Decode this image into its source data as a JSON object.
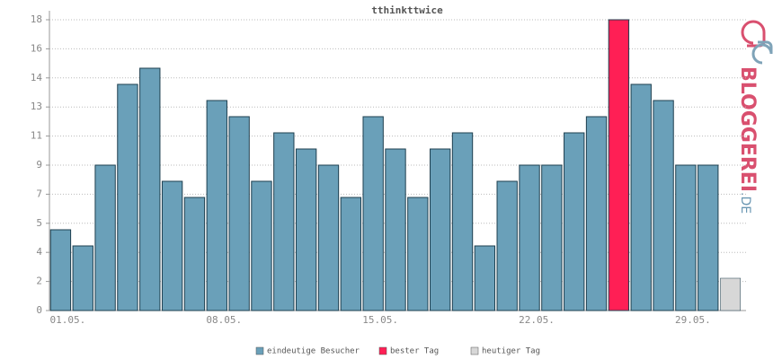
{
  "chart_data": {
    "type": "bar",
    "title": "tthinkttwice",
    "categories": [
      "01.05.",
      null,
      null,
      null,
      null,
      null,
      null,
      "08.05.",
      null,
      null,
      null,
      null,
      null,
      null,
      "15.05.",
      null,
      null,
      null,
      null,
      null,
      null,
      "22.05.",
      null,
      null,
      null,
      null,
      null,
      null,
      "29.05.",
      null,
      null
    ],
    "series": [
      {
        "name": "eindeutige Besucher",
        "color": "#6aa0b9",
        "values": [
          5,
          4,
          9,
          14,
          15,
          8,
          7,
          13,
          12,
          8,
          11,
          10,
          9,
          7,
          12,
          10,
          7,
          10,
          11,
          4,
          8,
          9,
          9,
          11,
          12,
          null,
          14,
          13,
          9,
          9,
          null
        ]
      },
      {
        "name": "bester Tag",
        "color": "#ff1f55",
        "values": [
          null,
          null,
          null,
          null,
          null,
          null,
          null,
          null,
          null,
          null,
          null,
          null,
          null,
          null,
          null,
          null,
          null,
          null,
          null,
          null,
          null,
          null,
          null,
          null,
          null,
          18,
          null,
          null,
          null,
          null,
          null
        ]
      },
      {
        "name": "heutiger Tag",
        "color": "#d7d7d7",
        "values": [
          null,
          null,
          null,
          null,
          null,
          null,
          null,
          null,
          null,
          null,
          null,
          null,
          null,
          null,
          null,
          null,
          null,
          null,
          null,
          null,
          null,
          null,
          null,
          null,
          null,
          null,
          null,
          null,
          null,
          null,
          2
        ]
      }
    ],
    "ylim": [
      0,
      18
    ],
    "yticks": [
      0,
      {
        "value": 1.8,
        "label": "2"
      },
      {
        "value": 3.6,
        "label": "4"
      },
      {
        "value": 5.4,
        "label": "5"
      },
      {
        "value": 7.2,
        "label": "7"
      },
      9,
      {
        "value": 10.8,
        "label": "11"
      },
      {
        "value": 12.6,
        "label": "13"
      },
      {
        "value": 14.4,
        "label": "14"
      },
      {
        "value": 16.2,
        "label": "16"
      },
      18
    ],
    "grid": true
  },
  "logo": {
    "text": "BLOGGEREI",
    "suffix": ".DE"
  }
}
